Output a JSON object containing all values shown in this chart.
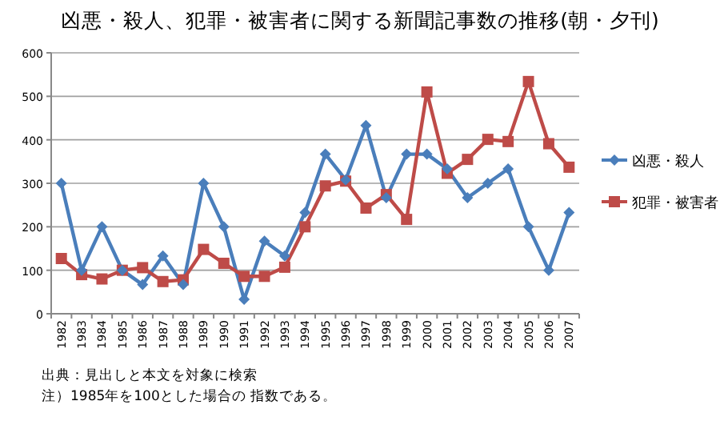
{
  "chart_data": {
    "type": "line",
    "title": "凶悪・殺人、犯罪・被害者に関する新聞記事数の推移(朝・夕刊)",
    "categories": [
      "1982",
      "1983",
      "1984",
      "1985",
      "1986",
      "1987",
      "1988",
      "1989",
      "1990",
      "1991",
      "1992",
      "1993",
      "1994",
      "1995",
      "1996",
      "1997",
      "1998",
      "1999",
      "2000",
      "2001",
      "2002",
      "2003",
      "2004",
      "2005",
      "2006",
      "2007"
    ],
    "series": [
      {
        "name": "凶悪・殺人",
        "color": "#4a7ebb",
        "marker": "diamond",
        "values": [
          300,
          100,
          200,
          100,
          67,
          133,
          67,
          300,
          200,
          33,
          167,
          133,
          233,
          367,
          308,
          433,
          267,
          367,
          367,
          333,
          267,
          300,
          333,
          200,
          100,
          233
        ]
      },
      {
        "name": "犯罪・被害者",
        "color": "#be4b48",
        "marker": "square",
        "values": [
          127,
          90,
          80,
          100,
          106,
          74,
          78,
          148,
          116,
          86,
          86,
          107,
          200,
          294,
          305,
          243,
          274,
          217,
          510,
          323,
          355,
          401,
          396,
          534,
          391,
          337
        ]
      }
    ],
    "ylim": [
      0,
      600
    ],
    "yticks": [
      0,
      100,
      200,
      300,
      400,
      500,
      600
    ],
    "grid": "y",
    "legend": "right",
    "line_style": "solid",
    "annotations": [
      "出典：見出しと本文を対象に検索",
      "注）1985年を100とした場合の 指数である。"
    ]
  }
}
